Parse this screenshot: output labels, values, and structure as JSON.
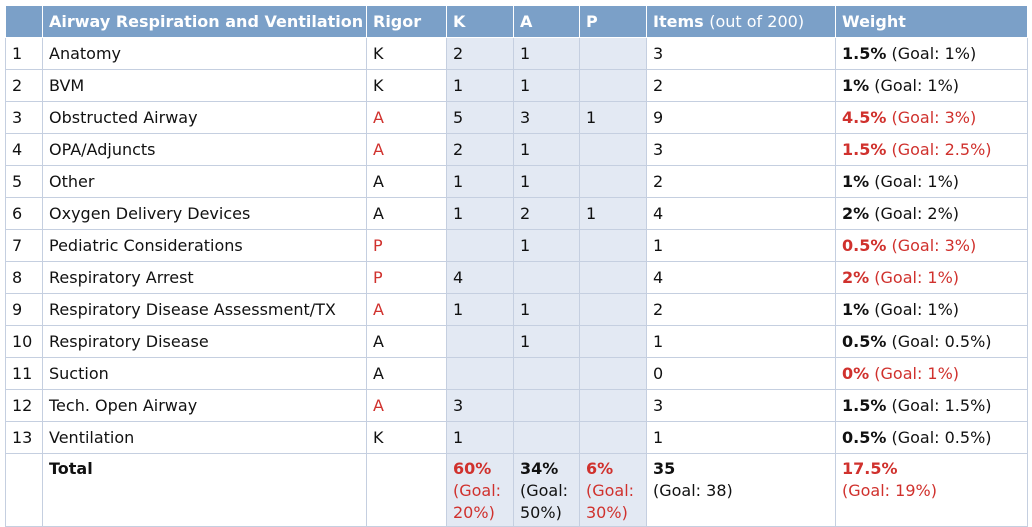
{
  "header": {
    "topic": "Airway Respiration and Ventilation",
    "rigor": "Rigor",
    "k": "K",
    "a": "A",
    "p": "P",
    "items": "Items",
    "items_note": "(out of 200)",
    "weight": "Weight"
  },
  "rows": [
    {
      "num": "1",
      "topic": "Anatomy",
      "rigor": "K",
      "rigor_red": false,
      "k": "2",
      "a": "1",
      "p": "",
      "items": "3",
      "weight": "1.5%",
      "goal": "(Goal: 1%)",
      "weight_red": false
    },
    {
      "num": "2",
      "topic": "BVM",
      "rigor": "K",
      "rigor_red": false,
      "k": "1",
      "a": "1",
      "p": "",
      "items": "2",
      "weight": "1%",
      "goal": "(Goal: 1%)",
      "weight_red": false
    },
    {
      "num": "3",
      "topic": "Obstructed Airway",
      "rigor": "A",
      "rigor_red": true,
      "k": "5",
      "a": "3",
      "p": "1",
      "items": "9",
      "weight": "4.5%",
      "goal": "(Goal: 3%)",
      "weight_red": true
    },
    {
      "num": "4",
      "topic": "OPA/Adjuncts",
      "rigor": "A",
      "rigor_red": true,
      "k": "2",
      "a": "1",
      "p": "",
      "items": "3",
      "weight": "1.5%",
      "goal": "(Goal: 2.5%)",
      "weight_red": true
    },
    {
      "num": "5",
      "topic": "Other",
      "rigor": "A",
      "rigor_red": false,
      "k": "1",
      "a": "1",
      "p": "",
      "items": "2",
      "weight": "1%",
      "goal": "(Goal: 1%)",
      "weight_red": false
    },
    {
      "num": "6",
      "topic": "Oxygen Delivery Devices",
      "rigor": "A",
      "rigor_red": false,
      "k": "1",
      "a": "2",
      "p": "1",
      "items": "4",
      "weight": "2%",
      "goal": "(Goal: 2%)",
      "weight_red": false
    },
    {
      "num": "7",
      "topic": "Pediatric Considerations",
      "rigor": "P",
      "rigor_red": true,
      "k": "",
      "a": "1",
      "p": "",
      "items": "1",
      "weight": "0.5%",
      "goal": "(Goal: 3%)",
      "weight_red": true
    },
    {
      "num": "8",
      "topic": "Respiratory Arrest",
      "rigor": "P",
      "rigor_red": true,
      "k": "4",
      "a": "",
      "p": "",
      "items": "4",
      "weight": "2%",
      "goal": "(Goal: 1%)",
      "weight_red": true
    },
    {
      "num": "9",
      "topic": "Respiratory Disease Assessment/TX",
      "rigor": "A",
      "rigor_red": true,
      "k": "1",
      "a": "1",
      "p": "",
      "items": "2",
      "weight": "1%",
      "goal": "(Goal: 1%)",
      "weight_red": false
    },
    {
      "num": "10",
      "topic": "Respiratory Disease",
      "rigor": "A",
      "rigor_red": false,
      "k": "",
      "a": "1",
      "p": "",
      "items": "1",
      "weight": "0.5%",
      "goal": "(Goal: 0.5%)",
      "weight_red": false
    },
    {
      "num": "11",
      "topic": "Suction",
      "rigor": "A",
      "rigor_red": false,
      "k": "",
      "a": "",
      "p": "",
      "items": "0",
      "weight": "0%",
      "goal": "(Goal: 1%)",
      "weight_red": true
    },
    {
      "num": "12",
      "topic": "Tech. Open Airway",
      "rigor": "A",
      "rigor_red": true,
      "k": "3",
      "a": "",
      "p": "",
      "items": "3",
      "weight": "1.5%",
      "goal": "(Goal: 1.5%)",
      "weight_red": false
    },
    {
      "num": "13",
      "topic": "Ventilation",
      "rigor": "K",
      "rigor_red": false,
      "k": "1",
      "a": "",
      "p": "",
      "items": "1",
      "weight": "0.5%",
      "goal": "(Goal: 0.5%)",
      "weight_red": false
    }
  ],
  "total": {
    "label": "Total",
    "k_pct": "60%",
    "k_goal_1": "(Goal:",
    "k_goal_2": "20%)",
    "k_red": true,
    "a_pct": "34%",
    "a_goal_1": "(Goal:",
    "a_goal_2": "50%)",
    "a_red": false,
    "p_pct": "6%",
    "p_goal_1": "(Goal:",
    "p_goal_2": "30%)",
    "p_red": true,
    "items": "35",
    "items_goal": "(Goal: 38)",
    "weight": "17.5%",
    "weight_goal": "(Goal: 19%)",
    "weight_red": true
  },
  "colors": {
    "header_bg": "#7ba0c8",
    "number_cell_bg": "#e3e9f3",
    "alert_red": "#d0312d",
    "border": "#c5cfe0"
  }
}
